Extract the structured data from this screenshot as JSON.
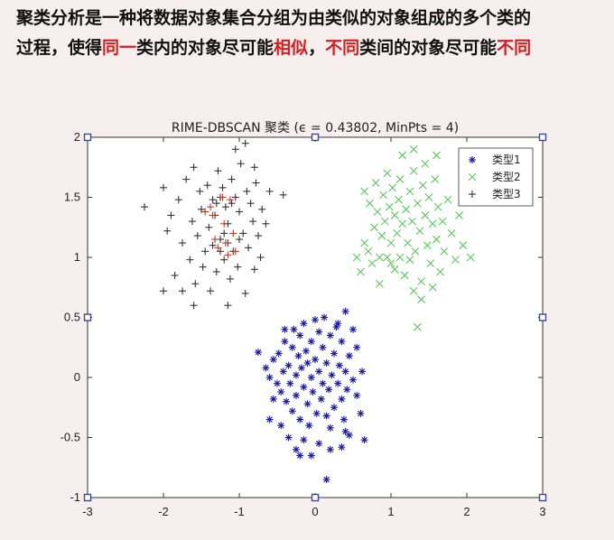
{
  "heading": {
    "line1": "聚类分析是一种将数据对象集合分组为由类似的对象组成的多个类的",
    "line2_a": "过程，使得",
    "line2_b": "同一",
    "line2_c": "类内的对象尽可能",
    "line2_d": "相似",
    "line2_e": "，",
    "line2_f": "不同",
    "line2_g": "类间的对象尽可能",
    "line2_h": "不同",
    "highlight_color": "#d21f1f"
  },
  "chart_data": {
    "type": "scatter",
    "title": "RIME-DBSCAN 聚类 (ϵ = 0.43802, MinPts = 4)",
    "xlabel": "",
    "ylabel": "",
    "xlim": [
      -3,
      3
    ],
    "ylim": [
      -1,
      2
    ],
    "x_ticks": [
      "-3",
      "-2",
      "-1",
      "0",
      "1",
      "2",
      "3"
    ],
    "y_ticks": [
      "-1",
      "-0.5",
      "0",
      "0.5",
      "1",
      "1.5",
      "2"
    ],
    "grid": false,
    "legend_position": "top-right",
    "series": [
      {
        "name": "类型1",
        "marker": "star",
        "color": "#1a1a9c",
        "points": [
          [
            -0.75,
            0.21
          ],
          [
            -0.65,
            0.08
          ],
          [
            -0.6,
            0.0
          ],
          [
            -0.55,
            0.15
          ],
          [
            -0.5,
            -0.05
          ],
          [
            -0.48,
            0.2
          ],
          [
            -0.45,
            -0.12
          ],
          [
            -0.42,
            0.05
          ],
          [
            -0.4,
            0.3
          ],
          [
            -0.38,
            -0.2
          ],
          [
            -0.35,
            0.1
          ],
          [
            -0.33,
            -0.05
          ],
          [
            -0.3,
            0.25
          ],
          [
            -0.3,
            -0.28
          ],
          [
            -0.28,
            0.4
          ],
          [
            -0.25,
            0.02
          ],
          [
            -0.25,
            -0.15
          ],
          [
            -0.22,
            0.18
          ],
          [
            -0.2,
            -0.35
          ],
          [
            -0.2,
            0.35
          ],
          [
            -0.18,
            0.08
          ],
          [
            -0.15,
            -0.08
          ],
          [
            -0.15,
            0.45
          ],
          [
            -0.12,
            0.22
          ],
          [
            -0.1,
            -0.22
          ],
          [
            -0.1,
            0.12
          ],
          [
            -0.08,
            -0.4
          ],
          [
            -0.05,
            0.3
          ],
          [
            -0.05,
            0.0
          ],
          [
            -0.03,
            -0.12
          ],
          [
            0.0,
            0.15
          ],
          [
            0.0,
            0.48
          ],
          [
            0.02,
            -0.3
          ],
          [
            0.05,
            0.05
          ],
          [
            0.05,
            0.38
          ],
          [
            0.08,
            -0.18
          ],
          [
            0.1,
            0.25
          ],
          [
            0.1,
            -0.05
          ],
          [
            0.12,
            0.5
          ],
          [
            0.15,
            -0.32
          ],
          [
            0.15,
            0.12
          ],
          [
            0.18,
            -0.1
          ],
          [
            0.2,
            0.35
          ],
          [
            0.2,
            -0.42
          ],
          [
            0.22,
            0.02
          ],
          [
            0.25,
            0.2
          ],
          [
            0.25,
            -0.25
          ],
          [
            0.28,
            0.42
          ],
          [
            0.3,
            -0.05
          ],
          [
            0.32,
            0.1
          ],
          [
            0.35,
            -0.18
          ],
          [
            0.35,
            0.3
          ],
          [
            0.38,
            -0.35
          ],
          [
            0.4,
            0.05
          ],
          [
            0.42,
            -0.1
          ],
          [
            0.45,
            0.18
          ],
          [
            0.45,
            -0.48
          ],
          [
            0.5,
            -0.02
          ],
          [
            0.55,
            -0.15
          ],
          [
            0.55,
            0.25
          ],
          [
            0.6,
            -0.3
          ],
          [
            0.62,
            0.05
          ],
          [
            0.65,
            -0.52
          ],
          [
            -0.6,
            -0.35
          ],
          [
            -0.55,
            -0.18
          ],
          [
            -0.45,
            -0.4
          ],
          [
            -0.35,
            -0.5
          ],
          [
            -0.25,
            -0.6
          ],
          [
            -0.15,
            -0.52
          ],
          [
            0.05,
            -0.55
          ],
          [
            0.2,
            -0.6
          ],
          [
            0.35,
            -0.58
          ],
          [
            0.4,
            -0.45
          ],
          [
            -0.2,
            -0.65
          ],
          [
            -0.05,
            -0.65
          ],
          [
            0.15,
            -0.85
          ],
          [
            0.3,
            0.45
          ],
          [
            0.4,
            0.55
          ],
          [
            0.5,
            0.4
          ],
          [
            -0.4,
            0.4
          ]
        ]
      },
      {
        "name": "类型2",
        "marker": "x",
        "color": "#5ac85a",
        "points": [
          [
            0.55,
            1.0
          ],
          [
            0.6,
            0.88
          ],
          [
            0.65,
            1.12
          ],
          [
            0.7,
            1.05
          ],
          [
            0.72,
            1.45
          ],
          [
            0.75,
            0.95
          ],
          [
            0.78,
            1.25
          ],
          [
            0.8,
            1.62
          ],
          [
            0.82,
            1.38
          ],
          [
            0.85,
            0.78
          ],
          [
            0.88,
            1.18
          ],
          [
            0.9,
            1.52
          ],
          [
            0.92,
            1.3
          ],
          [
            0.95,
            1.0
          ],
          [
            0.95,
            1.7
          ],
          [
            0.98,
            1.42
          ],
          [
            1.0,
            1.12
          ],
          [
            1.02,
            1.58
          ],
          [
            1.05,
            0.9
          ],
          [
            1.05,
            1.35
          ],
          [
            1.08,
            1.2
          ],
          [
            1.1,
            1.48
          ],
          [
            1.12,
            1.0
          ],
          [
            1.12,
            1.65
          ],
          [
            1.15,
            1.28
          ],
          [
            1.18,
            0.85
          ],
          [
            1.2,
            1.4
          ],
          [
            1.22,
            1.12
          ],
          [
            1.25,
            1.55
          ],
          [
            1.25,
            0.98
          ],
          [
            1.28,
            1.3
          ],
          [
            1.3,
            1.72
          ],
          [
            1.32,
            1.05
          ],
          [
            1.35,
            1.45
          ],
          [
            1.38,
            1.22
          ],
          [
            1.4,
            0.8
          ],
          [
            1.42,
            1.6
          ],
          [
            1.45,
            1.35
          ],
          [
            1.48,
            1.1
          ],
          [
            1.5,
            1.5
          ],
          [
            1.52,
            0.95
          ],
          [
            1.55,
            1.28
          ],
          [
            1.58,
            1.65
          ],
          [
            1.6,
            1.15
          ],
          [
            1.62,
            1.42
          ],
          [
            1.65,
            0.88
          ],
          [
            1.68,
            1.3
          ],
          [
            1.7,
            1.05
          ],
          [
            1.75,
            1.48
          ],
          [
            1.8,
            1.2
          ],
          [
            1.85,
            0.98
          ],
          [
            1.9,
            1.35
          ],
          [
            1.95,
            1.1
          ],
          [
            2.05,
            1.0
          ],
          [
            1.3,
            0.72
          ],
          [
            1.4,
            0.65
          ],
          [
            1.55,
            0.75
          ],
          [
            1.35,
            0.42
          ],
          [
            0.65,
            1.55
          ],
          [
            0.85,
            1.0
          ],
          [
            1.0,
            0.95
          ],
          [
            1.15,
            1.85
          ],
          [
            1.3,
            1.9
          ],
          [
            1.45,
            1.78
          ],
          [
            1.6,
            1.85
          ]
        ]
      },
      {
        "name": "类型3",
        "marker": "plus",
        "color": "#333333",
        "points": [
          [
            -2.25,
            1.42
          ],
          [
            -2.0,
            1.58
          ],
          [
            -1.95,
            1.22
          ],
          [
            -1.9,
            1.35
          ],
          [
            -1.85,
            0.85
          ],
          [
            -1.8,
            1.48
          ],
          [
            -1.75,
            1.12
          ],
          [
            -1.7,
            1.65
          ],
          [
            -1.65,
            0.98
          ],
          [
            -1.62,
            1.3
          ],
          [
            -1.6,
            1.75
          ],
          [
            -1.58,
            0.78
          ],
          [
            -1.55,
            1.18
          ],
          [
            -1.52,
            1.55
          ],
          [
            -1.5,
            1.4
          ],
          [
            -1.48,
            0.92
          ],
          [
            -1.45,
            1.05
          ],
          [
            -1.42,
            1.6
          ],
          [
            -1.4,
            1.25
          ],
          [
            -1.38,
            0.72
          ],
          [
            -1.35,
            1.48
          ],
          [
            -1.32,
            1.35
          ],
          [
            -1.3,
            0.88
          ],
          [
            -1.28,
            1.72
          ],
          [
            -1.25,
            1.15
          ],
          [
            -1.22,
            1.58
          ],
          [
            -1.2,
            0.98
          ],
          [
            -1.18,
            1.42
          ],
          [
            -1.15,
            1.28
          ],
          [
            -1.12,
            0.82
          ],
          [
            -1.1,
            1.65
          ],
          [
            -1.08,
            1.05
          ],
          [
            -1.05,
            1.5
          ],
          [
            -1.02,
            0.92
          ],
          [
            -1.0,
            1.38
          ],
          [
            -0.98,
            1.78
          ],
          [
            -0.95,
            1.2
          ],
          [
            -0.92,
            0.7
          ],
          [
            -0.9,
            1.55
          ],
          [
            -0.88,
            1.08
          ],
          [
            -0.85,
            1.45
          ],
          [
            -0.82,
            1.3
          ],
          [
            -0.8,
            0.9
          ],
          [
            -0.78,
            1.62
          ],
          [
            -0.75,
            1.18
          ],
          [
            -0.72,
            1.0
          ],
          [
            -0.7,
            1.4
          ],
          [
            -0.65,
            1.28
          ],
          [
            -0.42,
            1.52
          ],
          [
            -1.05,
            1.9
          ],
          [
            -0.92,
            1.95
          ],
          [
            -1.75,
            0.72
          ],
          [
            -1.6,
            0.6
          ],
          [
            -1.15,
            0.6
          ],
          [
            -2.0,
            0.72
          ],
          [
            -1.35,
            1.1
          ],
          [
            -1.25,
            1.5
          ],
          [
            -1.15,
            1.12
          ],
          [
            -1.1,
            1.45
          ],
          [
            -1.3,
            1.45
          ],
          [
            -1.25,
            1.05
          ],
          [
            -1.2,
            1.2
          ],
          [
            -1.0,
            1.15
          ],
          [
            -0.6,
            1.55
          ],
          [
            -0.8,
            1.75
          ]
        ],
        "highlight_points": [
          [
            -1.45,
            1.38
          ],
          [
            -1.38,
            1.42
          ],
          [
            -1.32,
            1.15
          ],
          [
            -1.28,
            1.08
          ],
          [
            -1.22,
            1.5
          ],
          [
            -1.18,
            1.12
          ],
          [
            -1.15,
            1.02
          ],
          [
            -1.12,
            1.48
          ],
          [
            -1.08,
            1.2
          ],
          [
            -1.05,
            1.05
          ],
          [
            -1.35,
            1.35
          ],
          [
            -1.2,
            1.28
          ]
        ],
        "highlight_color": "#c0392b"
      }
    ]
  }
}
